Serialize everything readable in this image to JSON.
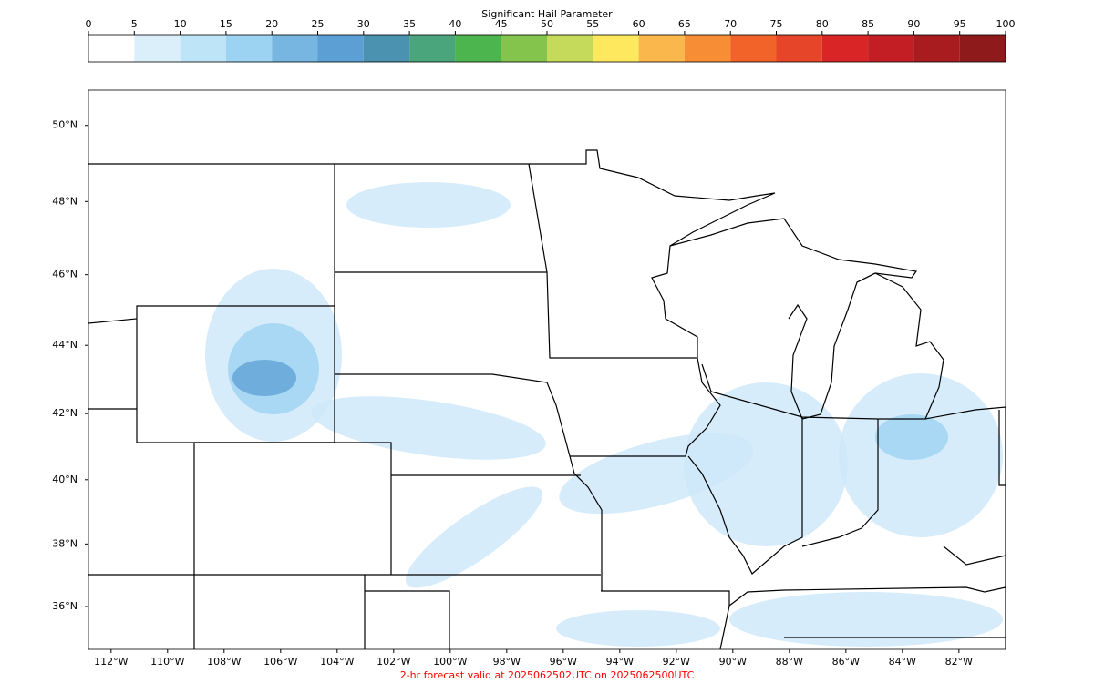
{
  "colorbar": {
    "title": "Significant Hail Parameter",
    "lim": [
      0,
      100
    ],
    "ticks": [
      0,
      5,
      10,
      15,
      20,
      25,
      30,
      35,
      40,
      45,
      50,
      55,
      60,
      65,
      70,
      75,
      80,
      85,
      90,
      95,
      100
    ],
    "colors": [
      "#ffffff",
      "#dbeffb",
      "#bde4f7",
      "#9dd3f2",
      "#76b6e0",
      "#5b9fd4",
      "#4a92b0",
      "#4aa57c",
      "#4cb54e",
      "#84c44c",
      "#c5da5a",
      "#fde85e",
      "#f9b74c",
      "#f78e35",
      "#f16329",
      "#e6452a",
      "#d92526",
      "#c21e23",
      "#a81c20",
      "#8f1a1c"
    ]
  },
  "map": {
    "xlim": [
      -112.8,
      -80.35
    ],
    "ylim": [
      34.6,
      50.9
    ],
    "xticks": [
      {
        "value": -112,
        "label": "112°W"
      },
      {
        "value": -110,
        "label": "110°W"
      },
      {
        "value": -108,
        "label": "108°W"
      },
      {
        "value": -106,
        "label": "106°W"
      },
      {
        "value": -104,
        "label": "104°W"
      },
      {
        "value": -102,
        "label": "102°W"
      },
      {
        "value": -100,
        "label": "100°W"
      },
      {
        "value": -98,
        "label": "98°W"
      },
      {
        "value": -96,
        "label": "96°W"
      },
      {
        "value": -94,
        "label": "94°W"
      },
      {
        "value": -92,
        "label": "92°W"
      },
      {
        "value": -90,
        "label": "90°W"
      },
      {
        "value": -88,
        "label": "88°W"
      },
      {
        "value": -86,
        "label": "86°W"
      },
      {
        "value": -84,
        "label": "84°W"
      },
      {
        "value": -82,
        "label": "82°W"
      }
    ],
    "yticks": [
      {
        "value": 50,
        "label": "50°N"
      },
      {
        "value": 48,
        "label": "48°N"
      },
      {
        "value": 46,
        "label": "46°N"
      },
      {
        "value": 44,
        "label": "44°N"
      },
      {
        "value": 42,
        "label": "42°N"
      },
      {
        "value": 40,
        "label": "40°N"
      },
      {
        "value": 38,
        "label": "38°N"
      },
      {
        "value": 36,
        "label": "36°N"
      }
    ]
  },
  "footer": "2-hr forecast valid at 2025062502UTC on 2025062500UTC"
}
